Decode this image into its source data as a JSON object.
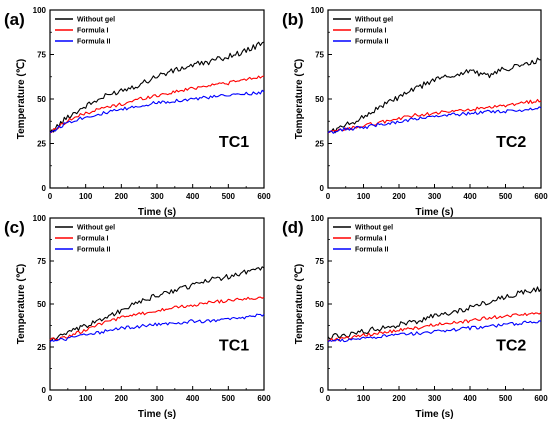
{
  "legend": [
    "Without gel",
    "Formula I",
    "Formula II"
  ],
  "colors": {
    "Without gel": "#000000",
    "Formula I": "#ff0000",
    "Formula II": "#0000ff"
  },
  "chart_data": [
    {
      "type": "line",
      "panel": "(a)",
      "annotation": "TC1",
      "xlabel": "Time (s)",
      "ylabel": "Temperature (℃)",
      "xlim": [
        0,
        600
      ],
      "ylim": [
        0,
        100
      ],
      "xticks": [
        "0",
        "100",
        "200",
        "300",
        "400",
        "500",
        "600"
      ],
      "yticks": [
        "0",
        "25",
        "50",
        "75",
        "100"
      ],
      "legend_position": "top-left",
      "x": [
        0,
        50,
        100,
        150,
        200,
        250,
        300,
        350,
        400,
        450,
        500,
        550,
        600
      ],
      "series": [
        {
          "name": "Without gel",
          "values": [
            31,
            40,
            46,
            51,
            55,
            58,
            63,
            66,
            69,
            71,
            74,
            77,
            82
          ]
        },
        {
          "name": "Formula I",
          "values": [
            31,
            38,
            42,
            45,
            47,
            50,
            52,
            54,
            56,
            58,
            59,
            61,
            63
          ]
        },
        {
          "name": "Formula II",
          "values": [
            31,
            37,
            40,
            42,
            44,
            46,
            48,
            49,
            50,
            51,
            52,
            53,
            54
          ]
        }
      ]
    },
    {
      "type": "line",
      "panel": "(b)",
      "annotation": "TC2",
      "xlabel": "Time (s)",
      "ylabel": "Temperature (℃)",
      "xlim": [
        0,
        600
      ],
      "ylim": [
        0,
        100
      ],
      "xticks": [
        "0",
        "100",
        "200",
        "300",
        "400",
        "500",
        "600"
      ],
      "yticks": [
        "0",
        "25",
        "50",
        "75",
        "100"
      ],
      "legend_position": "top-left",
      "x": [
        0,
        50,
        100,
        150,
        200,
        250,
        300,
        350,
        400,
        450,
        500,
        550,
        600
      ],
      "series": [
        {
          "name": "Without gel",
          "values": [
            31,
            35,
            40,
            46,
            51,
            56,
            61,
            63,
            66,
            63,
            67,
            69,
            72
          ]
        },
        {
          "name": "Formula I",
          "values": [
            31,
            33,
            35,
            37,
            39,
            41,
            42,
            43,
            44,
            45,
            46,
            48,
            49
          ]
        },
        {
          "name": "Formula II",
          "values": [
            31,
            33,
            34,
            36,
            37,
            39,
            40,
            41,
            42,
            43,
            43,
            44,
            45
          ]
        }
      ]
    },
    {
      "type": "line",
      "panel": "(c)",
      "annotation": "TC1",
      "xlabel": "Time (s)",
      "ylabel": "Temperature (℃)",
      "xlim": [
        0,
        600
      ],
      "ylim": [
        0,
        100
      ],
      "xticks": [
        "0",
        "100",
        "200",
        "300",
        "400",
        "500",
        "600"
      ],
      "yticks": [
        "0",
        "25",
        "50",
        "75",
        "100"
      ],
      "legend_position": "top-left",
      "x": [
        0,
        50,
        100,
        150,
        200,
        250,
        300,
        350,
        400,
        450,
        500,
        550,
        600
      ],
      "series": [
        {
          "name": "Without gel",
          "values": [
            29,
            33,
            37,
            42,
            46,
            51,
            55,
            58,
            61,
            64,
            66,
            69,
            71
          ]
        },
        {
          "name": "Formula I",
          "values": [
            29,
            31,
            35,
            39,
            42,
            44,
            46,
            48,
            49,
            51,
            52,
            53,
            54
          ]
        },
        {
          "name": "Formula II",
          "values": [
            28,
            30,
            32,
            34,
            36,
            37,
            38,
            39,
            40,
            40,
            41,
            42,
            44
          ]
        }
      ]
    },
    {
      "type": "line",
      "panel": "(d)",
      "annotation": "TC2",
      "xlabel": "Time (s)",
      "ylabel": "Temperature (℃)",
      "xlim": [
        0,
        600
      ],
      "ylim": [
        0,
        100
      ],
      "xticks": [
        "0",
        "100",
        "200",
        "300",
        "400",
        "500",
        "600"
      ],
      "yticks": [
        "0",
        "25",
        "50",
        "75",
        "100"
      ],
      "legend_position": "top-left",
      "x": [
        0,
        50,
        100,
        150,
        200,
        250,
        300,
        350,
        400,
        450,
        500,
        550,
        600
      ],
      "series": [
        {
          "name": "Without gel",
          "values": [
            31,
            32,
            34,
            36,
            38,
            40,
            43,
            45,
            48,
            51,
            54,
            57,
            59
          ]
        },
        {
          "name": "Formula I",
          "values": [
            29,
            30,
            32,
            33,
            35,
            36,
            38,
            39,
            40,
            42,
            43,
            44,
            45
          ]
        },
        {
          "name": "Formula II",
          "values": [
            28,
            29,
            30,
            31,
            32,
            33,
            34,
            35,
            36,
            37,
            38,
            39,
            40
          ]
        }
      ]
    }
  ]
}
